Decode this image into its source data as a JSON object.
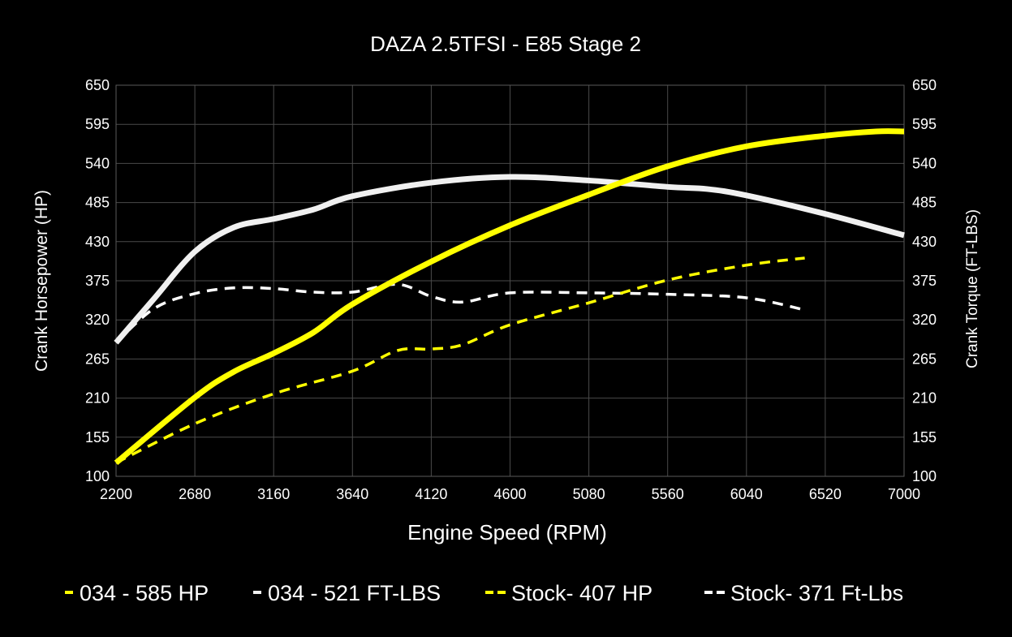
{
  "chart_data": {
    "type": "line",
    "title": "DAZA 2.5TFSI - E85 Stage 2",
    "xlabel": "Engine Speed (RPM)",
    "ylabel_left": "Crank Horsepower (HP)",
    "ylabel_right": "Crank Torque (FT-LBS)",
    "xlim": [
      2200,
      7000
    ],
    "ylim": [
      100,
      650
    ],
    "x_ticks": [
      "2200",
      "2680",
      "3160",
      "3640",
      "4120",
      "4600",
      "5080",
      "5560",
      "6040",
      "6520",
      "7000"
    ],
    "y_ticks": [
      "100",
      "155",
      "210",
      "265",
      "320",
      "375",
      "430",
      "485",
      "540",
      "595",
      "650"
    ],
    "grid": true,
    "legend_position": "bottom",
    "background": "#000000",
    "series": [
      {
        "name": "034 - 585 HP",
        "color": "#ffff00",
        "dashed": false,
        "x": [
          2200,
          2680,
          2917,
          3160,
          3400,
          3640,
          4120,
          4600,
          5080,
          5560,
          6040,
          6520,
          6830,
          7000
        ],
        "y": [
          119,
          211,
          247,
          273,
          302,
          342,
          402,
          453,
          496,
          536,
          564,
          579,
          585,
          585
        ]
      },
      {
        "name": "034 - 521 FT-LBS",
        "color": "#f0f0f0",
        "dashed": false,
        "x": [
          2200,
          2432,
          2680,
          2917,
          3160,
          3400,
          3640,
          4120,
          4600,
          5080,
          5560,
          5800,
          6040,
          6520,
          7000
        ],
        "y": [
          288,
          350,
          416,
          450,
          462,
          475,
          494,
          513,
          521,
          516,
          507,
          504,
          495,
          469,
          439
        ]
      },
      {
        "name": "Stock- 407 HP",
        "color": "#ffff00",
        "dashed": true,
        "x": [
          2200,
          2680,
          3160,
          3640,
          3915,
          4120,
          4310,
          4600,
          5080,
          5560,
          6040,
          6395
        ],
        "y": [
          119,
          174,
          216,
          248,
          277,
          279,
          285,
          313,
          344,
          376,
          397,
          407
        ]
      },
      {
        "name": "Stock- 371 Ft-Lbs",
        "color": "#ffffff",
        "dashed": true,
        "x": [
          2200,
          2432,
          2680,
          2917,
          3160,
          3400,
          3640,
          3915,
          4120,
          4310,
          4600,
          5080,
          5560,
          6040,
          6395
        ],
        "y": [
          288,
          336,
          357,
          365,
          364,
          359,
          359,
          370,
          353,
          345,
          358,
          358,
          356,
          351,
          334
        ]
      }
    ]
  }
}
